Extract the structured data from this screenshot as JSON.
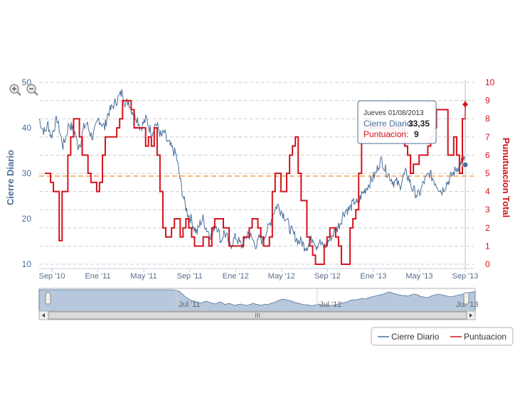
{
  "chart_data": {
    "type": "line",
    "ylabel_left": "Cierre Diario",
    "ylabel_right": "Punutuacion Total",
    "ylim_left": [
      10,
      50
    ],
    "ylim_right": [
      0,
      10
    ],
    "yticks_left": [
      "10",
      "20",
      "30",
      "40",
      "50"
    ],
    "yticks_right": [
      "0",
      "1",
      "2",
      "3",
      "4",
      "5",
      "6",
      "7",
      "8",
      "9",
      "10"
    ],
    "xticks": [
      "Sep '10",
      "Ene '11",
      "May '11",
      "Sep '11",
      "Ene '12",
      "May '12",
      "Sep '12",
      "Ene '13",
      "May '13",
      "Sep '13"
    ],
    "reference_line_right": 4.85,
    "legend_position": "bottom-right",
    "series": [
      {
        "name": "Cierre Diario",
        "color": "#4a6f98",
        "axis": "left",
        "values": [
          42,
          40,
          39,
          41,
          38,
          40,
          42,
          39,
          36,
          38,
          41,
          40,
          39,
          36,
          37,
          40,
          41,
          39,
          38,
          40,
          42,
          41,
          40,
          43,
          44,
          45,
          46,
          47,
          48,
          45,
          46,
          44,
          43,
          42,
          40,
          41,
          42,
          40,
          39,
          41,
          40,
          38,
          39,
          37,
          36,
          35,
          34,
          30,
          26,
          23,
          21,
          20,
          18,
          17,
          19,
          20,
          18,
          17,
          16,
          19,
          18,
          15,
          17,
          16,
          14,
          15,
          16,
          15,
          14,
          15,
          17,
          16,
          15,
          14,
          16,
          15,
          17,
          18,
          20,
          22,
          23,
          22,
          21,
          20,
          18,
          17,
          16,
          15,
          15,
          14,
          14,
          15,
          16,
          14,
          15,
          14,
          14,
          15,
          16,
          17,
          18,
          19,
          21,
          22,
          22,
          23,
          24,
          23,
          25,
          26,
          27,
          28,
          29,
          30,
          32,
          33,
          31,
          30,
          29,
          28,
          28,
          27,
          29,
          30,
          29,
          27,
          26,
          25,
          26,
          28,
          29,
          30,
          29,
          28,
          27,
          26,
          27,
          28,
          29,
          30,
          31,
          32,
          33,
          33.35
        ]
      },
      {
        "name": "Puntuacion",
        "color": "#d3121c",
        "axis": "right",
        "step": true,
        "values": [
          5,
          5,
          4.5,
          4,
          4,
          1.3,
          4,
          4,
          6,
          7,
          8,
          8,
          7,
          6,
          6,
          5,
          4.5,
          4.5,
          4,
          4.5,
          6,
          7,
          7,
          7,
          7,
          7.5,
          8,
          9,
          9,
          9,
          8.5,
          7.5,
          7.5,
          7.5,
          7.5,
          6.5,
          7,
          6.5,
          7.5,
          6,
          4,
          2,
          1.5,
          1.5,
          2,
          2.5,
          2.5,
          1.5,
          2,
          2.5,
          2,
          1.5,
          1,
          1,
          1,
          1.5,
          1.5,
          1,
          2,
          2.5,
          2.5,
          2.5,
          2,
          2,
          1,
          1,
          1,
          1,
          1,
          1.5,
          1.5,
          2,
          2.5,
          2.5,
          2,
          1.5,
          1,
          1,
          1.5,
          4,
          5,
          5,
          4,
          4,
          5,
          6,
          6.5,
          7,
          5,
          3.5,
          3.5,
          1.5,
          1,
          0.5,
          0,
          0,
          0,
          1,
          1.5,
          2,
          2,
          1.5,
          1,
          0,
          0,
          0,
          2,
          2.5,
          3,
          5,
          7,
          8,
          8,
          7.5,
          7.5,
          7.5,
          7.5,
          7.5,
          7,
          7.5,
          7,
          7.5,
          7.5,
          7,
          7.5,
          6.5,
          6,
          5,
          5.5,
          5.5,
          6,
          6,
          6,
          6.5,
          7,
          7.5,
          8.5,
          8.5,
          8.5,
          8.5,
          6,
          6,
          7,
          6,
          5,
          8,
          9
        ]
      }
    ],
    "navigator": {
      "labels": [
        "Jul '11",
        "Jul '12",
        "Jul '13"
      ]
    },
    "tooltip": {
      "date": "Jueves 01/08/2013",
      "series1_label": "Cierre Diario:",
      "series1_value": "33,35",
      "series2_label": "Puntuacion:",
      "series2_value": "9"
    }
  },
  "legend": {
    "items": [
      {
        "label": "Cierre Diario",
        "color": "#4a6f98"
      },
      {
        "label": "Puntuacion",
        "color": "#d3121c"
      }
    ]
  },
  "toolbar": {
    "zoom_in_icon": "zoom-in-icon",
    "zoom_out_icon": "zoom-out-icon",
    "scrollbar_grip": "III"
  }
}
